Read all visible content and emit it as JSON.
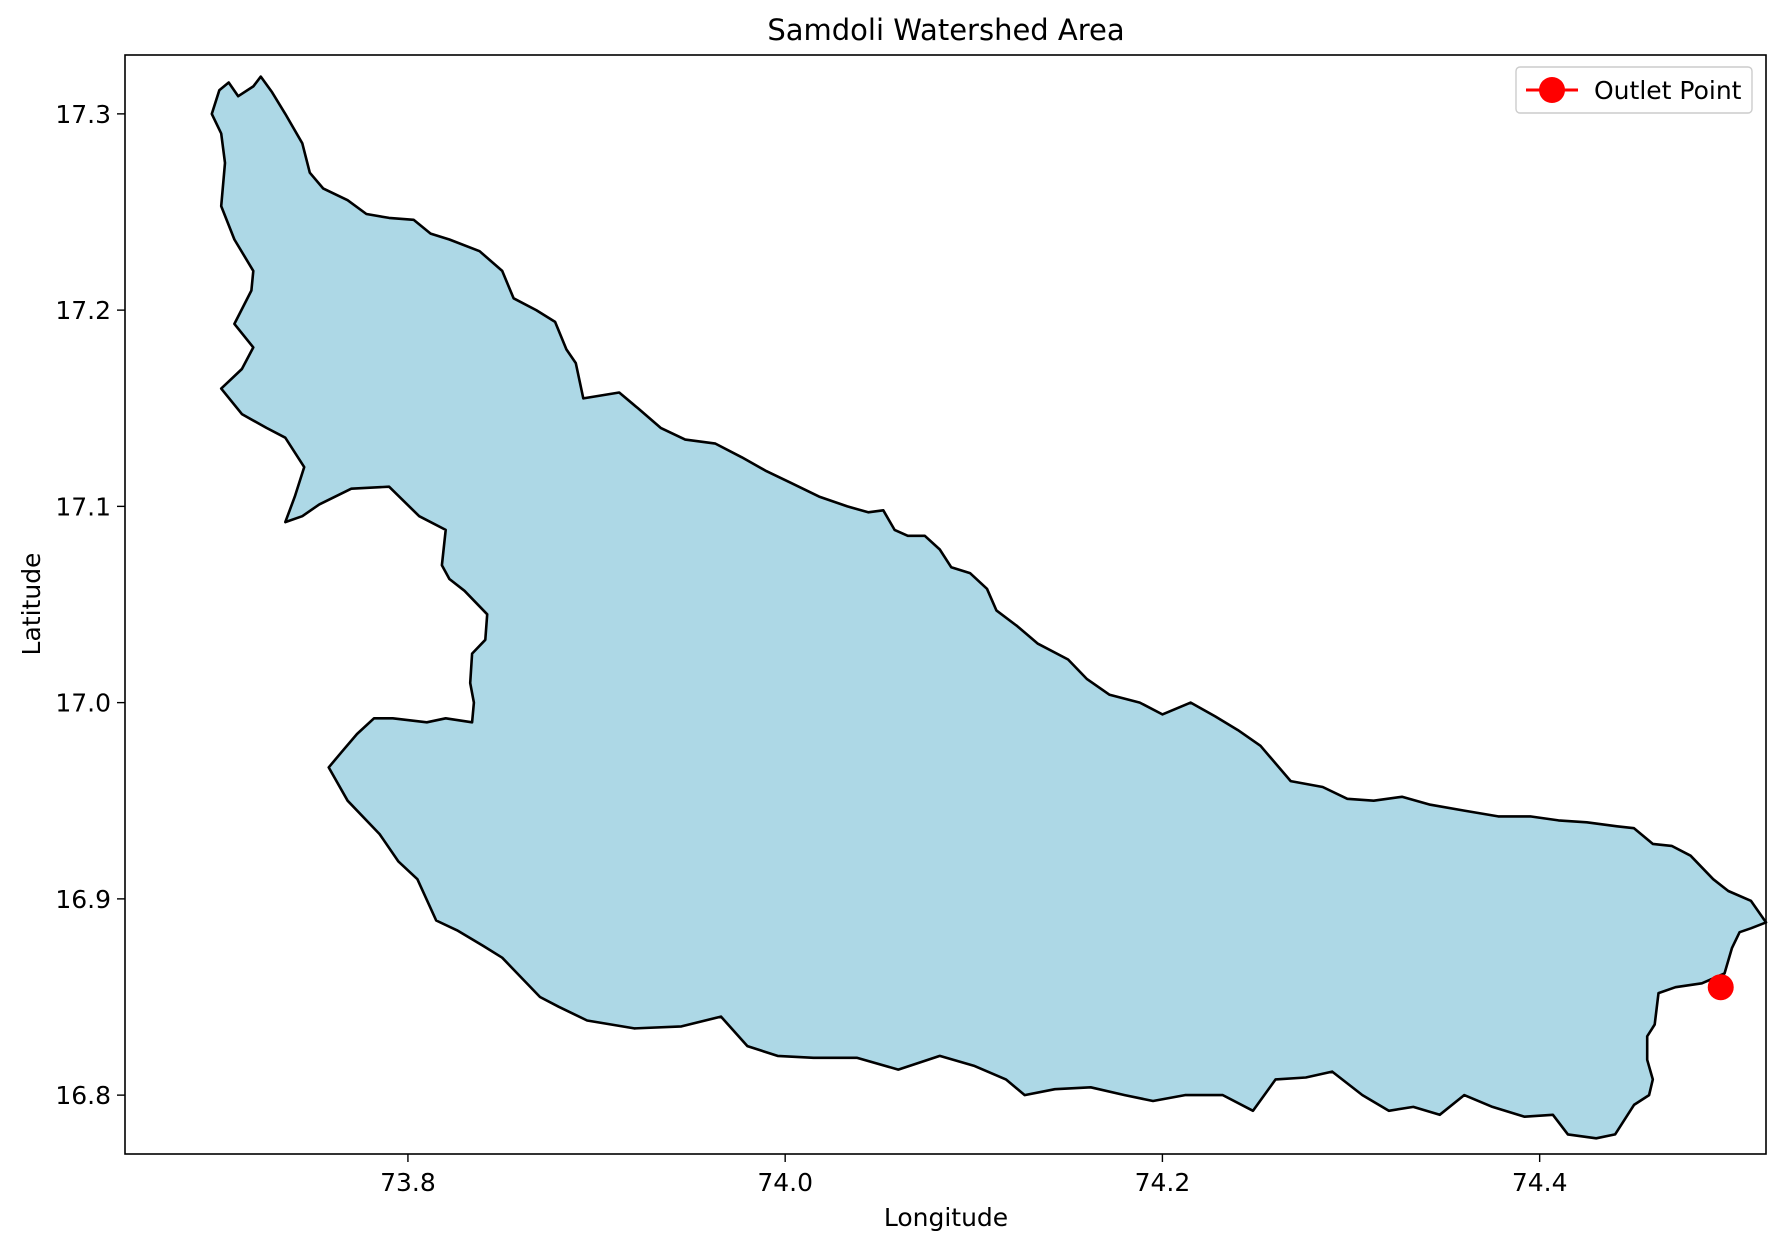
{
  "title": "Samdoli Watershed Area",
  "xlabel": "Longitude",
  "ylabel": "Latitude",
  "legend": {
    "label": "Outlet Point",
    "location": "upper-right"
  },
  "colors": {
    "watershed_fill": "#add8e6",
    "watershed_edge": "#000000",
    "outlet": "#ff0000",
    "axes": "#000000",
    "background": "#ffffff"
  },
  "chart_data": {
    "type": "map",
    "title": "Samdoli Watershed Area",
    "xlabel": "Longitude",
    "ylabel": "Latitude",
    "xlim": [
      73.65,
      74.52
    ],
    "ylim": [
      16.77,
      17.33
    ],
    "xticks": [
      73.8,
      74.0,
      74.2,
      74.4
    ],
    "yticks": [
      16.8,
      16.9,
      17.0,
      17.1,
      17.2,
      17.3
    ],
    "xtick_labels": [
      "73.8",
      "74.0",
      "74.2",
      "74.4"
    ],
    "ytick_labels": [
      "16.8",
      "16.9",
      "17.0",
      "17.1",
      "17.2",
      "17.3"
    ],
    "grid": false,
    "legend": "upper-right",
    "series": [
      {
        "name": "Outlet Point",
        "type": "point",
        "lon": 74.496,
        "lat": 16.855,
        "color": "#ff0000"
      }
    ],
    "watershed_boundary": [
      [
        73.7,
        17.312
      ],
      [
        73.705,
        17.316
      ],
      [
        73.71,
        17.309
      ],
      [
        73.718,
        17.314
      ],
      [
        73.722,
        17.319
      ],
      [
        73.728,
        17.311
      ],
      [
        73.735,
        17.3
      ],
      [
        73.744,
        17.285
      ],
      [
        73.748,
        17.27
      ],
      [
        73.755,
        17.262
      ],
      [
        73.768,
        17.256
      ],
      [
        73.778,
        17.249
      ],
      [
        73.79,
        17.247
      ],
      [
        73.803,
        17.246
      ],
      [
        73.812,
        17.239
      ],
      [
        73.822,
        17.236
      ],
      [
        73.838,
        17.23
      ],
      [
        73.85,
        17.22
      ],
      [
        73.856,
        17.206
      ],
      [
        73.868,
        17.2
      ],
      [
        73.878,
        17.194
      ],
      [
        73.884,
        17.18
      ],
      [
        73.889,
        17.173
      ],
      [
        73.893,
        17.155
      ],
      [
        73.912,
        17.158
      ],
      [
        73.922,
        17.15
      ],
      [
        73.934,
        17.14
      ],
      [
        73.947,
        17.134
      ],
      [
        73.963,
        17.132
      ],
      [
        73.977,
        17.125
      ],
      [
        73.99,
        17.118
      ],
      [
        74.003,
        17.112
      ],
      [
        74.018,
        17.105
      ],
      [
        74.033,
        17.1
      ],
      [
        74.044,
        17.097
      ],
      [
        74.052,
        17.098
      ],
      [
        74.058,
        17.088
      ],
      [
        74.065,
        17.085
      ],
      [
        74.074,
        17.085
      ],
      [
        74.082,
        17.078
      ],
      [
        74.088,
        17.069
      ],
      [
        74.098,
        17.066
      ],
      [
        74.107,
        17.058
      ],
      [
        74.112,
        17.047
      ],
      [
        74.123,
        17.039
      ],
      [
        74.134,
        17.03
      ],
      [
        74.15,
        17.022
      ],
      [
        74.16,
        17.012
      ],
      [
        74.172,
        17.004
      ],
      [
        74.188,
        17.0
      ],
      [
        74.2,
        16.994
      ],
      [
        74.215,
        17.0
      ],
      [
        74.228,
        16.993
      ],
      [
        74.24,
        16.986
      ],
      [
        74.252,
        16.978
      ],
      [
        74.268,
        16.96
      ],
      [
        74.285,
        16.957
      ],
      [
        74.298,
        16.951
      ],
      [
        74.312,
        16.95
      ],
      [
        74.327,
        16.952
      ],
      [
        74.342,
        16.948
      ],
      [
        74.36,
        16.945
      ],
      [
        74.378,
        16.942
      ],
      [
        74.395,
        16.942
      ],
      [
        74.41,
        16.94
      ],
      [
        74.425,
        16.939
      ],
      [
        74.441,
        16.937
      ],
      [
        74.45,
        16.936
      ],
      [
        74.46,
        16.928
      ],
      [
        74.47,
        16.927
      ],
      [
        74.48,
        16.922
      ],
      [
        74.492,
        16.91
      ],
      [
        74.5,
        16.904
      ],
      [
        74.512,
        16.899
      ],
      [
        74.52,
        16.888
      ],
      [
        74.512,
        16.885
      ],
      [
        74.506,
        16.883
      ],
      [
        74.502,
        16.875
      ],
      [
        74.498,
        16.862
      ],
      [
        74.486,
        16.857
      ],
      [
        74.472,
        16.855
      ],
      [
        74.463,
        16.852
      ],
      [
        74.462,
        16.844
      ],
      [
        74.461,
        16.836
      ],
      [
        74.457,
        16.83
      ],
      [
        74.457,
        16.818
      ],
      [
        74.46,
        16.808
      ],
      [
        74.458,
        16.8
      ],
      [
        74.45,
        16.795
      ],
      [
        74.44,
        16.78
      ],
      [
        74.43,
        16.778
      ],
      [
        74.415,
        16.78
      ],
      [
        74.407,
        16.79
      ],
      [
        74.392,
        16.789
      ],
      [
        74.375,
        16.794
      ],
      [
        74.36,
        16.8
      ],
      [
        74.347,
        16.79
      ],
      [
        74.333,
        16.794
      ],
      [
        74.32,
        16.792
      ],
      [
        74.306,
        16.8
      ],
      [
        74.29,
        16.812
      ],
      [
        74.276,
        16.809
      ],
      [
        74.26,
        16.808
      ],
      [
        74.248,
        16.792
      ],
      [
        74.232,
        16.8
      ],
      [
        74.212,
        16.8
      ],
      [
        74.195,
        16.797
      ],
      [
        74.18,
        16.8
      ],
      [
        74.162,
        16.804
      ],
      [
        74.143,
        16.803
      ],
      [
        74.127,
        16.8
      ],
      [
        74.117,
        16.808
      ],
      [
        74.1,
        16.815
      ],
      [
        74.082,
        16.82
      ],
      [
        74.06,
        16.813
      ],
      [
        74.038,
        16.819
      ],
      [
        74.015,
        16.819
      ],
      [
        73.996,
        16.82
      ],
      [
        73.98,
        16.825
      ],
      [
        73.966,
        16.84
      ],
      [
        73.945,
        16.835
      ],
      [
        73.92,
        16.834
      ],
      [
        73.895,
        16.838
      ],
      [
        73.88,
        16.845
      ],
      [
        73.87,
        16.85
      ],
      [
        73.86,
        16.86
      ],
      [
        73.85,
        16.87
      ],
      [
        73.84,
        16.876
      ],
      [
        73.826,
        16.884
      ],
      [
        73.815,
        16.889
      ],
      [
        73.805,
        16.91
      ],
      [
        73.795,
        16.919
      ],
      [
        73.785,
        16.933
      ],
      [
        73.768,
        16.95
      ],
      [
        73.758,
        16.967
      ],
      [
        73.765,
        16.975
      ],
      [
        73.773,
        16.984
      ],
      [
        73.782,
        16.992
      ],
      [
        73.792,
        16.992
      ],
      [
        73.81,
        16.99
      ],
      [
        73.82,
        16.992
      ],
      [
        73.834,
        16.99
      ],
      [
        73.835,
        17.0
      ],
      [
        73.833,
        17.01
      ],
      [
        73.834,
        17.025
      ],
      [
        73.841,
        17.032
      ],
      [
        73.842,
        17.045
      ],
      [
        73.83,
        17.057
      ],
      [
        73.822,
        17.063
      ],
      [
        73.818,
        17.07
      ],
      [
        73.82,
        17.088
      ],
      [
        73.806,
        17.095
      ],
      [
        73.79,
        17.11
      ],
      [
        73.77,
        17.109
      ],
      [
        73.753,
        17.101
      ],
      [
        73.744,
        17.095
      ],
      [
        73.735,
        17.092
      ],
      [
        73.74,
        17.105
      ],
      [
        73.745,
        17.12
      ],
      [
        73.735,
        17.135
      ],
      [
        73.725,
        17.14
      ],
      [
        73.712,
        17.147
      ],
      [
        73.701,
        17.16
      ],
      [
        73.712,
        17.17
      ],
      [
        73.718,
        17.181
      ],
      [
        73.708,
        17.193
      ],
      [
        73.717,
        17.21
      ],
      [
        73.718,
        17.22
      ],
      [
        73.708,
        17.236
      ],
      [
        73.701,
        17.253
      ],
      [
        73.703,
        17.275
      ],
      [
        73.701,
        17.29
      ],
      [
        73.696,
        17.3
      ],
      [
        73.7,
        17.312
      ]
    ]
  }
}
